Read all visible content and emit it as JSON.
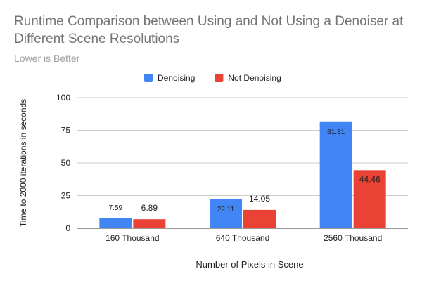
{
  "chart_data": {
    "type": "bar",
    "title": "Runtime Comparison between Using and Not Using a Denoiser at Different Scene Resolutions",
    "subtitle": "Lower is Better",
    "xlabel": "Number of Pixels in Scene",
    "ylabel": "Time to 2000 iterations in seconds",
    "categories": [
      "160 Thousand",
      "640 Thousand",
      "2560 Thousand"
    ],
    "series": [
      {
        "name": "Denoising",
        "color": "#4285f4",
        "label_color": "#4285f4",
        "values": [
          7.59,
          22.11,
          81.31
        ]
      },
      {
        "name": "Not Denoising",
        "color": "#ea4335",
        "label_color": "#ea4335",
        "values": [
          6.89,
          14.05,
          44.46
        ]
      }
    ],
    "ylim": [
      0,
      100
    ],
    "yticks": [
      0,
      25,
      50,
      75,
      100
    ],
    "grid": true,
    "legend": "top-center"
  }
}
